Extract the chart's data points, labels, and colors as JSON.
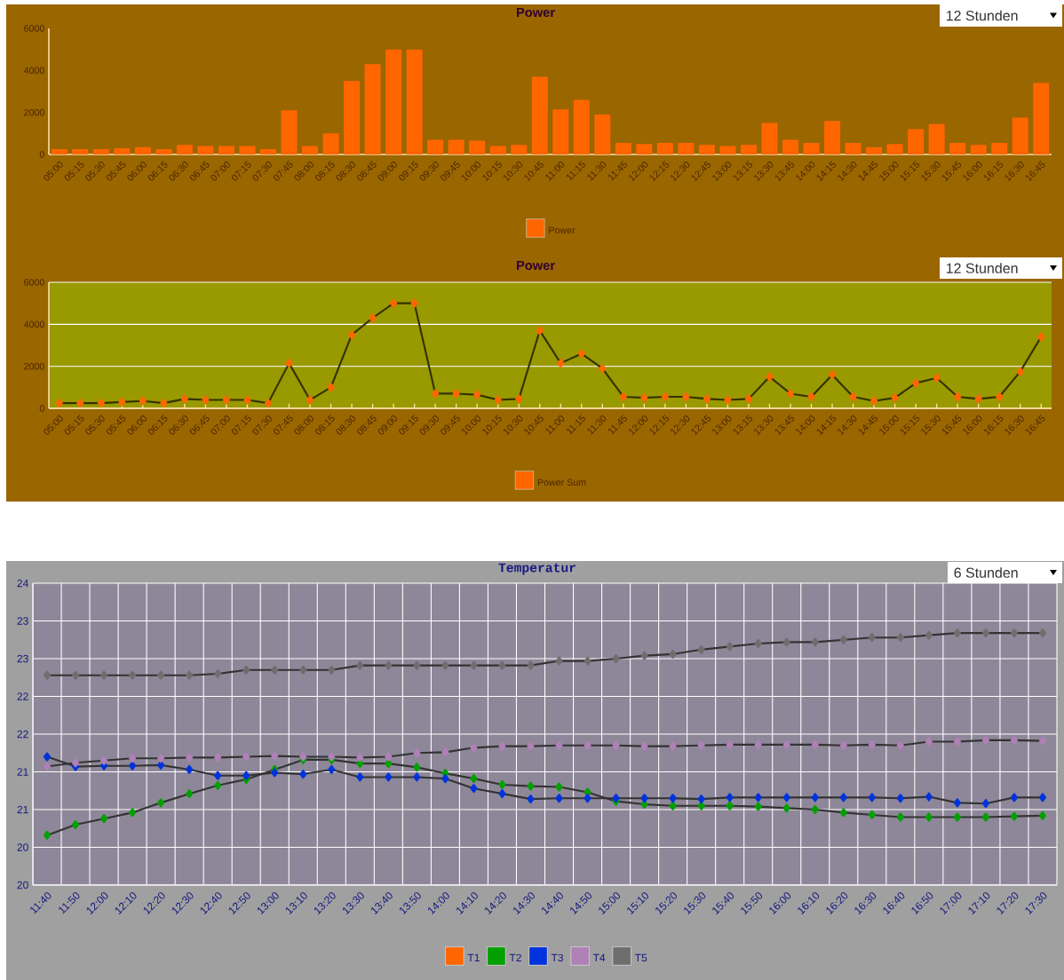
{
  "chart_data": [
    {
      "type": "bar",
      "title": "Power",
      "annotations": [
        "12 Stunden"
      ],
      "legend": "bottom",
      "categories": [
        "05:00",
        "05:15",
        "05:30",
        "05:45",
        "06:00",
        "06:15",
        "06:30",
        "06:45",
        "07:00",
        "07:15",
        "07:30",
        "07:45",
        "08:00",
        "08:15",
        "08:30",
        "08:45",
        "09:00",
        "09:15",
        "09:30",
        "09:45",
        "10:00",
        "10:15",
        "10:30",
        "10:45",
        "11:00",
        "11:15",
        "11:30",
        "11:45",
        "12:00",
        "12:15",
        "12:30",
        "12:45",
        "13:00",
        "13:15",
        "13:30",
        "13:45",
        "14:00",
        "14:15",
        "14:30",
        "14:45",
        "15:00",
        "15:15",
        "15:30",
        "15:45",
        "16:00",
        "16:15",
        "16:30",
        "16:45"
      ],
      "ylim": [
        0,
        6000
      ],
      "yticks": [
        0,
        2000,
        4000,
        6000
      ],
      "series": [
        {
          "name": "Power",
          "color": "#ff6600",
          "values": [
            250,
            250,
            250,
            300,
            350,
            250,
            450,
            400,
            400,
            400,
            250,
            2100,
            400,
            1000,
            3500,
            4300,
            5000,
            5000,
            700,
            700,
            650,
            400,
            450,
            3700,
            2150,
            2600,
            1900,
            550,
            500,
            550,
            550,
            450,
            400,
            450,
            1500,
            700,
            550,
            1600,
            550,
            350,
            500,
            1200,
            1450,
            550,
            450,
            550,
            1750,
            3400
          ]
        }
      ]
    },
    {
      "type": "line",
      "title": "Power",
      "annotations": [
        "12 Stunden"
      ],
      "legend": "bottom",
      "grid": "y",
      "marker": "diamond",
      "categories": [
        "05:00",
        "05:15",
        "05:30",
        "05:45",
        "06:00",
        "06:15",
        "06:30",
        "06:45",
        "07:00",
        "07:15",
        "07:30",
        "07:45",
        "08:00",
        "08:15",
        "08:30",
        "08:45",
        "09:00",
        "09:15",
        "09:30",
        "09:45",
        "10:00",
        "10:15",
        "10:30",
        "10:45",
        "11:00",
        "11:15",
        "11:30",
        "11:45",
        "12:00",
        "12:15",
        "12:30",
        "12:45",
        "13:00",
        "13:15",
        "13:30",
        "13:45",
        "14:00",
        "14:15",
        "14:30",
        "14:45",
        "15:00",
        "15:15",
        "15:30",
        "15:45",
        "16:00",
        "16:15",
        "16:30",
        "16:45"
      ],
      "ylim": [
        0,
        6000
      ],
      "yticks": [
        0,
        2000,
        4000,
        6000
      ],
      "series": [
        {
          "name": "Power Sum",
          "color": "#ff6600",
          "values": [
            250,
            250,
            250,
            300,
            350,
            250,
            450,
            400,
            400,
            400,
            250,
            2150,
            400,
            1000,
            3500,
            4300,
            5000,
            5000,
            700,
            700,
            650,
            400,
            450,
            3700,
            2150,
            2600,
            1900,
            550,
            500,
            550,
            550,
            450,
            400,
            450,
            1500,
            700,
            550,
            1600,
            550,
            350,
            500,
            1200,
            1450,
            550,
            450,
            550,
            1750,
            3400
          ]
        }
      ]
    },
    {
      "type": "line",
      "title": "Temperatur",
      "annotations": [
        "6 Stunden"
      ],
      "legend": "bottom",
      "grid": true,
      "marker": "diamond",
      "categories": [
        "11:40",
        "11:50",
        "12:00",
        "12:10",
        "12:20",
        "12:30",
        "12:40",
        "12:50",
        "13:00",
        "13:10",
        "13:20",
        "13:30",
        "13:40",
        "13:50",
        "14:00",
        "14:10",
        "14:20",
        "14:30",
        "14:40",
        "14:50",
        "15:00",
        "15:10",
        "15:20",
        "15:30",
        "15:40",
        "15:50",
        "16:00",
        "16:10",
        "16:20",
        "16:30",
        "16:40",
        "16:50",
        "17:00",
        "17:10",
        "17:20",
        "17:30"
      ],
      "ylim": [
        20,
        24
      ],
      "yticks": [
        20,
        {
          "value": 20.5,
          "label": "20"
        },
        21,
        {
          "value": 21.5,
          "label": "21"
        },
        22,
        {
          "value": 22.5,
          "label": "22"
        },
        23,
        {
          "value": 23.5,
          "label": "23"
        },
        24
      ],
      "series": [
        {
          "name": "T1",
          "color": "#ff6600",
          "values": [
            null,
            null,
            null,
            null,
            null,
            null,
            null,
            null,
            null,
            null,
            null,
            null,
            null,
            null,
            null,
            null,
            null,
            null,
            null,
            null,
            null,
            null,
            null,
            null,
            null,
            null,
            null,
            null,
            null,
            null,
            null,
            null,
            null,
            null,
            null,
            null
          ]
        },
        {
          "name": "T2",
          "color": "#00a000",
          "values": [
            20.66,
            20.8,
            20.88,
            20.96,
            21.09,
            21.21,
            21.32,
            21.4,
            21.53,
            21.66,
            21.66,
            21.61,
            21.61,
            21.56,
            21.48,
            21.41,
            21.33,
            21.31,
            21.3,
            21.23,
            21.11,
            21.07,
            21.05,
            21.05,
            21.05,
            21.04,
            21.02,
            21.0,
            20.96,
            20.93,
            20.9,
            20.9,
            20.9,
            20.9,
            20.91,
            20.92
          ]
        },
        {
          "name": "T3",
          "color": "#0033dd",
          "values": [
            21.7,
            21.57,
            21.58,
            21.58,
            21.59,
            21.53,
            21.45,
            21.45,
            21.49,
            21.47,
            21.53,
            21.43,
            21.43,
            21.43,
            21.41,
            21.28,
            21.21,
            21.14,
            21.15,
            21.15,
            21.15,
            21.15,
            21.15,
            21.14,
            21.16,
            21.16,
            21.16,
            21.16,
            21.16,
            21.16,
            21.15,
            21.17,
            21.09,
            21.08,
            21.16,
            21.16
          ]
        },
        {
          "name": "T4",
          "color": "#b080b8",
          "values": [
            21.57,
            21.62,
            21.65,
            21.68,
            21.68,
            21.69,
            21.69,
            21.7,
            21.71,
            21.7,
            21.7,
            21.69,
            21.7,
            21.75,
            21.76,
            21.82,
            21.84,
            21.84,
            21.85,
            21.85,
            21.85,
            21.84,
            21.84,
            21.85,
            21.86,
            21.86,
            21.86,
            21.86,
            21.85,
            21.86,
            21.85,
            21.9,
            21.9,
            21.92,
            21.92,
            21.91
          ]
        },
        {
          "name": "T5",
          "color": "#6e6e6e",
          "values": [
            22.78,
            22.78,
            22.78,
            22.78,
            22.78,
            22.78,
            22.8,
            22.85,
            22.85,
            22.85,
            22.85,
            22.91,
            22.91,
            22.91,
            22.91,
            22.91,
            22.91,
            22.91,
            22.97,
            22.97,
            23.0,
            23.04,
            23.06,
            23.12,
            23.16,
            23.2,
            23.22,
            23.22,
            23.25,
            23.28,
            23.28,
            23.31,
            23.34,
            23.34,
            23.34,
            23.34
          ]
        }
      ]
    }
  ]
}
